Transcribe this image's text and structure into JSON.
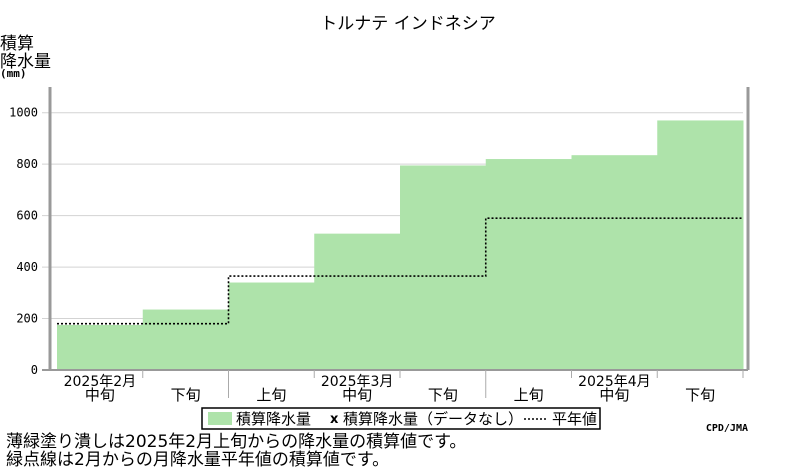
{
  "chart_data": {
    "type": "area",
    "title": "トルナテ インドネシア",
    "ylabel_lines": [
      "積算",
      "降水量"
    ],
    "yunit": "(mm)",
    "ylim": [
      0,
      1100
    ],
    "yticks": [
      0,
      200,
      400,
      600,
      800,
      1000
    ],
    "grid": true,
    "periods": [
      "2025年2月中旬",
      "2025年2月下旬",
      "2025年3月上旬",
      "2025年3月中旬",
      "2025年3月下旬",
      "2025年4月上旬",
      "2025年4月中旬",
      "2025年4月下旬"
    ],
    "tick_labels": [
      "中旬",
      "下旬",
      "上旬",
      "中旬",
      "下旬",
      "上旬",
      "中旬",
      "下旬"
    ],
    "month_labels": [
      {
        "label": "2025年2月",
        "at_period": 0
      },
      {
        "label": "2025年3月",
        "at_period": 3
      },
      {
        "label": "2025年4月",
        "at_period": 6
      }
    ],
    "month_boundaries_after_period": [
      1,
      4
    ],
    "series": [
      {
        "name": "積算降水量",
        "values": [
          175,
          235,
          340,
          530,
          795,
          820,
          835,
          970
        ],
        "color": "#aee3aa"
      },
      {
        "name": "平年値",
        "values": [
          180,
          180,
          365,
          365,
          365,
          590,
          590,
          590
        ],
        "color": "#000000"
      }
    ],
    "missing_data_legend": "積算降水量（データなし）",
    "missing_data_marker": "x",
    "credit": "CPD/JMA"
  },
  "notes": [
    "薄緑塗り潰しは2025年2月上旬からの降水量の積算値です。",
    "緑点線は2月からの月降水量平年値の積算値です。"
  ]
}
